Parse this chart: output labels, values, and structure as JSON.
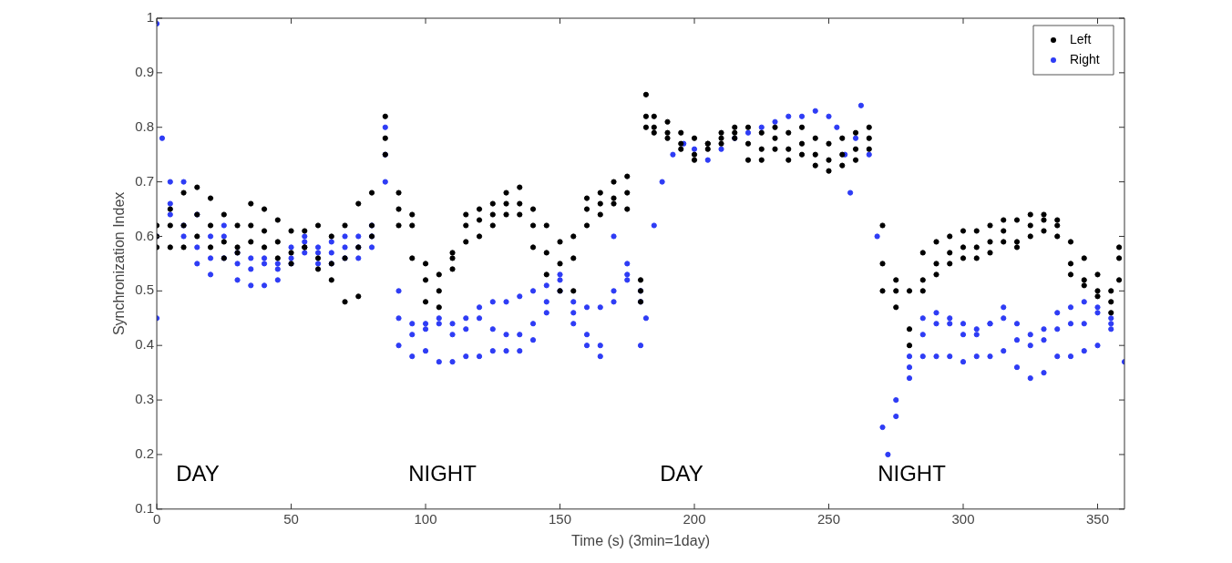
{
  "chart_data": {
    "type": "scatter",
    "xlabel": "Time (s) (3min=1day)",
    "ylabel": "Synchronization Index",
    "xlim": [
      0,
      360
    ],
    "ylim": [
      0.1,
      1
    ],
    "xticks": [
      0,
      50,
      100,
      150,
      200,
      250,
      300,
      350
    ],
    "yticks": [
      0.1,
      0.2,
      0.3,
      0.4,
      0.5,
      0.6,
      0.7,
      0.8,
      0.9,
      1
    ],
    "grid": false,
    "legend": "top right",
    "marker": "circle",
    "annotations": [
      "DAY",
      "NIGHT",
      "DAY",
      "NIGHT"
    ],
    "series": [
      {
        "name": "Left",
        "color": "#000000",
        "x": [
          0,
          5,
          10,
          15,
          20,
          25,
          30,
          35,
          40,
          45,
          50,
          55,
          60,
          65,
          70,
          75,
          80,
          85,
          90,
          95,
          100,
          105,
          110,
          115,
          120,
          125,
          130,
          135,
          140,
          145,
          150,
          155,
          160,
          165,
          170,
          175,
          180,
          182,
          185,
          190,
          195,
          200,
          205,
          210,
          215,
          220,
          225,
          230,
          235,
          240,
          245,
          250,
          255,
          260,
          265,
          270,
          275,
          280,
          285,
          290,
          295,
          300,
          305,
          310,
          315,
          320,
          325,
          330,
          335,
          340,
          345,
          350,
          355,
          358,
          0,
          5,
          10,
          15,
          20,
          25,
          30,
          35,
          40,
          45,
          50,
          55,
          60,
          65,
          70,
          75,
          80,
          85,
          90,
          95,
          100,
          105,
          110,
          115,
          120,
          125,
          130,
          135,
          140,
          145,
          150,
          155,
          160,
          165,
          170,
          175,
          180,
          182,
          185,
          190,
          195,
          200,
          205,
          210,
          215,
          220,
          225,
          230,
          235,
          240,
          245,
          250,
          255,
          260,
          265,
          270,
          275,
          280,
          285,
          290,
          295,
          300,
          305,
          310,
          315,
          320,
          325,
          330,
          335,
          340,
          345,
          350,
          355,
          358,
          0,
          5,
          10,
          15,
          20,
          25,
          30,
          35,
          40,
          45,
          50,
          55,
          60,
          65,
          70,
          75,
          80,
          85,
          90,
          95,
          100,
          105,
          110,
          115,
          120,
          125,
          130,
          135,
          140,
          145,
          150,
          155,
          160,
          165,
          170,
          175,
          180,
          182,
          185,
          190,
          195,
          200,
          205,
          210,
          215,
          220,
          225,
          230,
          235,
          240,
          245,
          250,
          255,
          260,
          265,
          270,
          275,
          280,
          285,
          290,
          295,
          300,
          305,
          310,
          315,
          320,
          325,
          330,
          335,
          340,
          345,
          350,
          355,
          358
        ],
        "values": [
          0.62,
          0.65,
          0.68,
          0.69,
          0.67,
          0.64,
          0.62,
          0.66,
          0.65,
          0.63,
          0.61,
          0.61,
          0.62,
          0.6,
          0.62,
          0.66,
          0.68,
          0.82,
          0.68,
          0.64,
          0.55,
          0.53,
          0.57,
          0.64,
          0.65,
          0.66,
          0.68,
          0.69,
          0.65,
          0.62,
          0.59,
          0.6,
          0.67,
          0.68,
          0.7,
          0.71,
          0.52,
          0.86,
          0.82,
          0.81,
          0.79,
          0.78,
          0.77,
          0.79,
          0.8,
          0.8,
          0.79,
          0.8,
          0.79,
          0.8,
          0.78,
          0.77,
          0.78,
          0.79,
          0.8,
          0.62,
          0.52,
          0.5,
          0.57,
          0.59,
          0.6,
          0.61,
          0.61,
          0.62,
          0.63,
          0.63,
          0.64,
          0.64,
          0.63,
          0.59,
          0.56,
          0.53,
          0.5,
          0.58,
          0.6,
          0.62,
          0.62,
          0.64,
          0.62,
          0.59,
          0.58,
          0.62,
          0.61,
          0.59,
          0.57,
          0.58,
          0.56,
          0.55,
          0.56,
          0.58,
          0.62,
          0.78,
          0.65,
          0.62,
          0.52,
          0.5,
          0.56,
          0.62,
          0.63,
          0.64,
          0.66,
          0.66,
          0.62,
          0.57,
          0.55,
          0.56,
          0.65,
          0.66,
          0.67,
          0.68,
          0.5,
          0.82,
          0.8,
          0.79,
          0.77,
          0.75,
          0.77,
          0.78,
          0.79,
          0.77,
          0.76,
          0.78,
          0.76,
          0.77,
          0.75,
          0.74,
          0.75,
          0.76,
          0.78,
          0.55,
          0.5,
          0.43,
          0.52,
          0.55,
          0.57,
          0.58,
          0.58,
          0.59,
          0.61,
          0.59,
          0.62,
          0.63,
          0.62,
          0.55,
          0.52,
          0.5,
          0.48,
          0.56,
          0.58,
          0.58,
          0.58,
          0.6,
          0.58,
          0.56,
          0.57,
          0.59,
          0.58,
          0.56,
          0.55,
          0.58,
          0.54,
          0.52,
          0.48,
          0.49,
          0.6,
          0.75,
          0.62,
          0.56,
          0.48,
          0.47,
          0.54,
          0.59,
          0.6,
          0.62,
          0.64,
          0.64,
          0.58,
          0.53,
          0.5,
          0.5,
          0.62,
          0.64,
          0.66,
          0.65,
          0.48,
          0.8,
          0.79,
          0.78,
          0.76,
          0.74,
          0.76,
          0.77,
          0.78,
          0.74,
          0.74,
          0.76,
          0.74,
          0.75,
          0.73,
          0.72,
          0.73,
          0.74,
          0.76,
          0.5,
          0.47,
          0.4,
          0.5,
          0.53,
          0.55,
          0.56,
          0.56,
          0.57,
          0.59,
          0.58,
          0.6,
          0.61,
          0.6,
          0.53,
          0.51,
          0.49,
          0.46,
          0.52
        ]
      },
      {
        "name": "Right",
        "color": "#2e3cf5",
        "x": [
          0,
          2,
          5,
          10,
          15,
          20,
          25,
          30,
          35,
          40,
          45,
          50,
          55,
          60,
          65,
          70,
          75,
          80,
          85,
          90,
          95,
          100,
          105,
          110,
          115,
          120,
          125,
          130,
          135,
          140,
          145,
          150,
          155,
          160,
          165,
          170,
          175,
          180,
          182,
          185,
          188,
          192,
          196,
          200,
          205,
          210,
          215,
          220,
          225,
          230,
          235,
          240,
          245,
          250,
          253,
          256,
          258,
          260,
          262,
          265,
          268,
          270,
          272,
          275,
          280,
          285,
          290,
          295,
          300,
          305,
          310,
          315,
          320,
          325,
          330,
          335,
          340,
          345,
          350,
          355,
          360,
          0,
          5,
          10,
          15,
          20,
          25,
          30,
          35,
          40,
          45,
          50,
          55,
          60,
          65,
          70,
          75,
          80,
          85,
          90,
          95,
          100,
          105,
          110,
          115,
          120,
          125,
          130,
          135,
          140,
          145,
          150,
          155,
          160,
          165,
          170,
          175,
          180,
          275,
          280,
          285,
          290,
          295,
          300,
          305,
          310,
          315,
          320,
          325,
          330,
          335,
          340,
          345,
          350,
          355,
          0,
          5,
          10,
          15,
          20,
          25,
          30,
          35,
          40,
          45,
          50,
          55,
          60,
          65,
          70,
          75,
          80,
          85,
          90,
          95,
          100,
          105,
          110,
          115,
          120,
          125,
          130,
          135,
          140,
          145,
          150,
          155,
          160,
          165,
          170,
          175,
          180,
          280,
          285,
          290,
          295,
          300,
          305,
          310,
          315,
          320,
          325,
          330,
          335,
          340,
          345,
          350,
          355
        ],
        "values": [
          0.99,
          0.78,
          0.7,
          0.7,
          0.64,
          0.6,
          0.62,
          0.57,
          0.56,
          0.56,
          0.55,
          0.58,
          0.6,
          0.58,
          0.59,
          0.6,
          0.6,
          0.62,
          0.8,
          0.5,
          0.44,
          0.44,
          0.45,
          0.44,
          0.45,
          0.47,
          0.48,
          0.48,
          0.49,
          0.5,
          0.51,
          0.5,
          0.48,
          0.47,
          0.47,
          0.6,
          0.55,
          0.5,
          0.45,
          0.62,
          0.7,
          0.75,
          0.77,
          0.76,
          0.74,
          0.76,
          0.78,
          0.79,
          0.8,
          0.81,
          0.82,
          0.82,
          0.83,
          0.82,
          0.8,
          0.75,
          0.68,
          0.78,
          0.84,
          0.75,
          0.6,
          0.25,
          0.2,
          0.27,
          0.34,
          0.45,
          0.46,
          0.45,
          0.44,
          0.43,
          0.44,
          0.47,
          0.44,
          0.42,
          0.43,
          0.46,
          0.47,
          0.48,
          0.47,
          0.45,
          0.37,
          0.6,
          0.66,
          0.62,
          0.58,
          0.56,
          0.6,
          0.55,
          0.54,
          0.55,
          0.54,
          0.56,
          0.59,
          0.57,
          0.57,
          0.58,
          0.58,
          0.6,
          0.75,
          0.45,
          0.42,
          0.43,
          0.44,
          0.42,
          0.43,
          0.45,
          0.43,
          0.42,
          0.42,
          0.44,
          0.48,
          0.53,
          0.46,
          0.42,
          0.4,
          0.5,
          0.53,
          0.48,
          0.3,
          0.38,
          0.42,
          0.44,
          0.44,
          0.42,
          0.42,
          0.44,
          0.45,
          0.41,
          0.4,
          0.41,
          0.43,
          0.44,
          0.44,
          0.46,
          0.44,
          0.45,
          0.64,
          0.6,
          0.55,
          0.53,
          0.56,
          0.52,
          0.51,
          0.51,
          0.52,
          0.55,
          0.57,
          0.55,
          0.55,
          0.56,
          0.56,
          0.58,
          0.7,
          0.4,
          0.38,
          0.39,
          0.37,
          0.37,
          0.38,
          0.38,
          0.39,
          0.39,
          0.39,
          0.41,
          0.46,
          0.52,
          0.44,
          0.4,
          0.38,
          0.48,
          0.52,
          0.4,
          0.36,
          0.38,
          0.38,
          0.38,
          0.37,
          0.38,
          0.38,
          0.39,
          0.36,
          0.34,
          0.35,
          0.38,
          0.38,
          0.39,
          0.4,
          0.43
        ]
      }
    ]
  }
}
